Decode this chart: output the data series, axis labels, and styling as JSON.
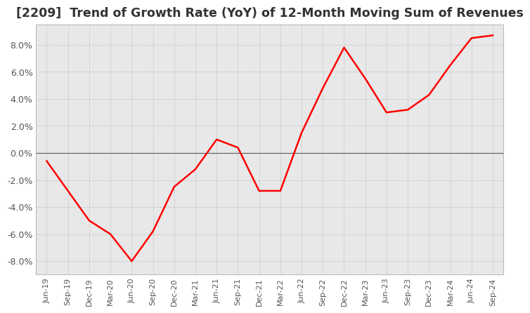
{
  "title": "[2209]  Trend of Growth Rate (YoY) of 12-Month Moving Sum of Revenues",
  "title_fontsize": 12.5,
  "title_color": "#333333",
  "line_color": "#ff0000",
  "background_color": "#ffffff",
  "plot_bg_color": "#e8e8e8",
  "grid_color": "#aaaaaa",
  "ylim": [
    -9.0,
    9.5
  ],
  "yticks": [
    -8.0,
    -6.0,
    -4.0,
    -2.0,
    0.0,
    2.0,
    4.0,
    6.0,
    8.0
  ],
  "x_labels": [
    "Jun-19",
    "Sep-19",
    "Dec-19",
    "Mar-20",
    "Jun-20",
    "Sep-20",
    "Dec-20",
    "Mar-21",
    "Jun-21",
    "Sep-21",
    "Dec-21",
    "Mar-22",
    "Jun-22",
    "Sep-22",
    "Dec-22",
    "Mar-23",
    "Jun-23",
    "Sep-23",
    "Dec-23",
    "Mar-24",
    "Jun-24",
    "Sep-24"
  ],
  "y_values": [
    -0.6,
    -2.8,
    -5.0,
    -6.0,
    -8.0,
    -5.8,
    -2.5,
    -1.2,
    1.0,
    0.4,
    -2.8,
    -2.8,
    1.5,
    4.8,
    7.8,
    5.5,
    3.0,
    3.2,
    4.3,
    6.5,
    8.5,
    8.7
  ]
}
